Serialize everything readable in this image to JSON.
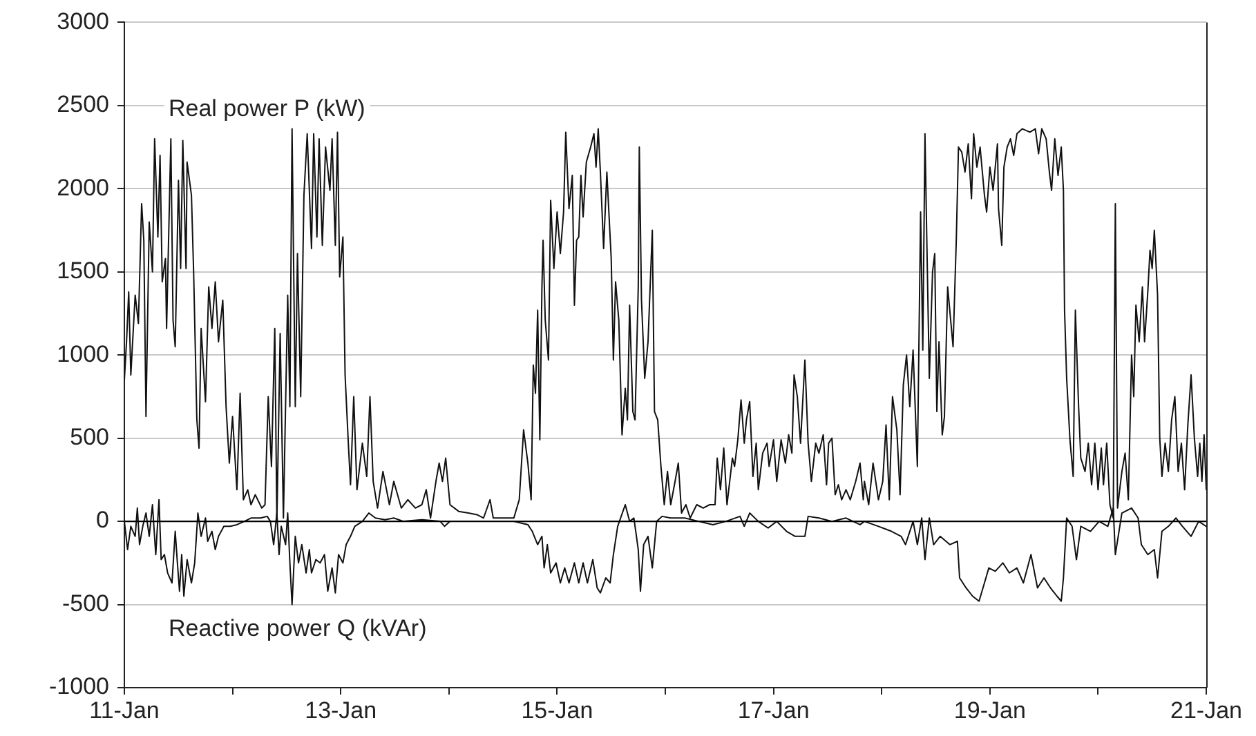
{
  "chart_data": {
    "type": "line",
    "xlim": [
      "--01-11",
      "--01-21"
    ],
    "xticks": [
      {
        "value": "--01-11",
        "label": "11-Jan"
      },
      {
        "value": "--01-12",
        "label": null
      },
      {
        "value": "--01-13",
        "label": "13-Jan"
      },
      {
        "value": "--01-14",
        "label": null
      },
      {
        "value": "--01-15",
        "label": "15-Jan"
      },
      {
        "value": "--01-16",
        "label": null
      },
      {
        "value": "--01-17",
        "label": "17-Jan"
      },
      {
        "value": "--01-18",
        "label": null
      },
      {
        "value": "--01-19",
        "label": "19-Jan"
      },
      {
        "value": "--01-20",
        "label": null
      },
      {
        "value": "--01-21",
        "label": "21-Jan"
      }
    ],
    "ylim": [
      -1000,
      3000
    ],
    "yticks": [
      -1000,
      -500,
      0,
      500,
      1000,
      1500,
      2000,
      2500,
      3000
    ],
    "grid": "y",
    "legend": false,
    "marker": "none",
    "line_style": "solid",
    "ref_lines": [
      {
        "axis": "y",
        "value": 0,
        "color": "#000000"
      }
    ],
    "series": [
      {
        "name": "Real power P (kW)",
        "color": "#111111",
        "x": [
          "--01-11T00:00",
          "--01-11T00:29",
          "--01-11T00:58",
          "--01-11T01:26",
          "--01-11T02:24",
          "--01-11T03:07",
          "--01-11T03:50",
          "--01-11T04:19",
          "--01-11T04:48",
          "--01-11T05:31",
          "--01-11T06:14",
          "--01-11T06:43",
          "--01-11T07:26",
          "--01-11T07:55",
          "--01-11T08:24",
          "--01-11T09:07",
          "--01-11T09:22",
          "--01-11T10:19",
          "--01-11T10:48",
          "--01-11T11:17",
          "--01-11T12:00",
          "--01-11T12:29",
          "--01-11T12:58",
          "--01-11T13:41",
          "--01-11T13:55",
          "--01-11T14:53",
          "--01-11T15:22",
          "--01-11T16:05",
          "--01-11T16:34",
          "--01-11T17:02",
          "--01-11T18:00",
          "--01-11T18:43",
          "--01-11T19:26",
          "--01-11T20:10",
          "--01-11T20:53",
          "--01-11T21:50",
          "--01-11T22:34",
          "--01-11T23:17",
          "--01-12T00:00",
          "--01-12T00:58",
          "--01-12T01:41",
          "--01-12T02:24",
          "--01-12T03:22",
          "--01-12T04:05",
          "--01-12T05:02",
          "--01-12T06:29",
          "--01-12T07:12",
          "--01-12T07:55",
          "--01-12T08:38",
          "--01-12T09:22",
          "--01-12T09:50",
          "--01-12T10:34",
          "--01-12T11:17",
          "--01-12T12:14",
          "--01-12T12:43",
          "--01-12T13:12",
          "--01-12T13:55",
          "--01-12T14:24",
          "--01-12T15:07",
          "--01-12T15:50",
          "--01-12T16:34",
          "--01-12T17:31",
          "--01-12T18:00",
          "--01-12T18:43",
          "--01-12T19:12",
          "--01-12T19:55",
          "--01-12T20:38",
          "--01-12T21:36",
          "--01-12T22:05",
          "--01-12T22:48",
          "--01-12T23:17",
          "--01-12T23:46",
          "--01-13T00:29",
          "--01-13T00:58",
          "--01-13T01:41",
          "--01-13T02:10",
          "--01-13T02:53",
          "--01-13T03:36",
          "--01-13T04:48",
          "--01-13T05:46",
          "--01-13T06:29",
          "--01-13T07:12",
          "--01-13T08:10",
          "--01-13T09:22",
          "--01-13T10:48",
          "--01-13T11:46",
          "--01-13T13:26",
          "--01-13T14:53",
          "--01-13T16:34",
          "--01-13T18:00",
          "--01-13T18:58",
          "--01-13T19:55",
          "--01-13T21:07",
          "--01-13T21:50",
          "--01-13T22:34",
          "--01-13T23:17",
          "--01-14T00:14",
          "--01-14T02:10",
          "--01-14T04:19",
          "--01-14T06:14",
          "--01-14T07:41",
          "--01-14T09:07",
          "--01-14T09:50",
          "--01-14T12:29",
          "--01-14T14:24",
          "--01-14T15:36",
          "--01-14T16:34",
          "--01-14T17:31",
          "--01-14T18:14",
          "--01-14T18:43",
          "--01-14T19:12",
          "--01-14T19:41",
          "--01-14T20:10",
          "--01-14T20:38",
          "--01-14T20:53",
          "--01-14T21:22",
          "--01-14T22:05",
          "--01-14T22:34",
          "--01-14T23:17",
          "--01-15T00:00",
          "--01-15T00:43",
          "--01-15T01:26",
          "--01-15T01:55",
          "--01-15T02:38",
          "--01-15T03:22",
          "--01-15T03:50",
          "--01-15T04:19",
          "--01-15T04:48",
          "--01-15T05:17",
          "--01-15T05:46",
          "--01-15T06:29",
          "--01-15T07:26",
          "--01-15T08:10",
          "--01-15T08:38",
          "--01-15T09:07",
          "--01-15T09:36",
          "--01-15T10:19",
          "--01-15T11:02",
          "--01-15T12:00",
          "--01-15T12:29",
          "--01-15T12:58",
          "--01-15T13:41",
          "--01-15T14:24",
          "--01-15T15:07",
          "--01-15T15:36",
          "--01-15T16:05",
          "--01-15T16:48",
          "--01-15T17:17",
          "--01-15T18:00",
          "--01-15T18:14",
          "--01-15T18:43",
          "--01-15T19:26",
          "--01-15T20:10",
          "--01-15T20:38",
          "--01-15T21:07",
          "--01-15T21:36",
          "--01-15T22:19",
          "--01-15T23:02",
          "--01-15T23:46",
          "--01-16T00:29",
          "--01-16T01:12",
          "--01-16T02:10",
          "--01-16T02:53",
          "--01-16T03:36",
          "--01-16T04:34",
          "--01-16T05:31",
          "--01-16T06:58",
          "--01-16T08:24",
          "--01-16T09:50",
          "--01-16T11:02",
          "--01-16T11:31",
          "--01-16T12:14",
          "--01-16T12:58",
          "--01-16T13:41",
          "--01-16T14:53",
          "--01-16T15:22",
          "--01-16T16:05",
          "--01-16T16:48",
          "--01-16T17:31",
          "--01-16T18:00",
          "--01-16T18:43",
          "--01-16T19:26",
          "--01-16T20:10",
          "--01-16T20:38",
          "--01-16T21:36",
          "--01-16T22:34",
          "--01-16T23:02",
          "--01-17T00:00",
          "--01-17T00:43",
          "--01-17T01:41",
          "--01-17T02:38",
          "--01-17T03:22",
          "--01-17T04:05",
          "--01-17T04:34",
          "--01-17T05:17",
          "--01-17T06:00",
          "--01-17T06:58",
          "--01-17T07:41",
          "--01-17T08:24",
          "--01-17T09:22",
          "--01-17T10:05",
          "--01-17T11:02",
          "--01-17T11:46",
          "--01-17T12:14",
          "--01-17T12:58",
          "--01-17T13:41",
          "--01-17T14:24",
          "--01-17T15:07",
          "--01-17T16:05",
          "--01-17T17:02",
          "--01-17T18:14",
          "--01-17T19:12",
          "--01-17T19:55",
          "--01-17T20:10",
          "--01-17T21:07",
          "--01-17T22:05",
          "--01-17T23:17",
          "--01-18T00:14",
          "--01-18T00:58",
          "--01-18T01:41",
          "--01-18T02:24",
          "--01-18T03:22",
          "--01-18T04:05",
          "--01-18T04:48",
          "--01-18T05:31",
          "--01-18T06:14",
          "--01-18T06:58",
          "--01-18T07:55",
          "--01-18T08:38",
          "--01-18T09:07",
          "--01-18T09:36",
          "--01-18T10:05",
          "--01-18T10:34",
          "--01-18T11:17",
          "--01-18T11:46",
          "--01-18T12:14",
          "--01-18T12:43",
          "--01-18T13:26",
          "--01-18T13:55",
          "--01-18T14:38",
          "--01-18T15:50",
          "--01-18T16:34",
          "--01-18T17:02",
          "--01-18T17:46",
          "--01-18T18:29",
          "--01-18T19:12",
          "--01-18T19:55",
          "--01-18T20:24",
          "--01-18T21:07",
          "--01-18T21:50",
          "--01-18T22:48",
          "--01-18T23:17",
          "--01-19T00:00",
          "--01-19T00:43",
          "--01-19T01:41",
          "--01-19T01:55",
          "--01-19T02:38",
          "--01-19T03:07",
          "--01-19T03:50",
          "--01-19T04:34",
          "--01-19T05:17",
          "--01-19T06:00",
          "--01-19T07:12",
          "--01-19T08:53",
          "--01-19T10:05",
          "--01-19T10:48",
          "--01-19T11:31",
          "--01-19T12:29",
          "--01-19T13:12",
          "--01-19T13:41",
          "--01-19T14:24",
          "--01-19T15:07",
          "--01-19T15:50",
          "--01-19T16:19",
          "--01-19T16:34",
          "--01-19T17:02",
          "--01-19T17:46",
          "--01-19T18:29",
          "--01-19T18:58",
          "--01-19T19:41",
          "--01-19T20:10",
          "--01-19T21:07",
          "--01-19T21:50",
          "--01-19T22:34",
          "--01-19T23:17",
          "--01-20T00:00",
          "--01-20T00:43",
          "--01-20T01:12",
          "--01-20T01:55",
          "--01-20T02:38",
          "--01-20T03:22",
          "--01-20T03:50",
          "--01-20T04:19",
          "--01-20T05:17",
          "--01-20T06:00",
          "--01-20T06:43",
          "--01-20T07:26",
          "--01-20T07:55",
          "--01-20T08:24",
          "--01-20T09:07",
          "--01-20T09:50",
          "--01-20T10:19",
          "--01-20T11:02",
          "--01-20T11:31",
          "--01-20T12:00",
          "--01-20T12:29",
          "--01-20T13:12",
          "--01-20T13:41",
          "--01-20T14:10",
          "--01-20T14:53",
          "--01-20T15:36",
          "--01-20T16:19",
          "--01-20T17:02",
          "--01-20T17:46",
          "--01-20T18:29",
          "--01-20T19:12",
          "--01-20T19:55",
          "--01-20T20:38",
          "--01-20T21:22",
          "--01-20T22:05",
          "--01-20T22:34",
          "--01-20T23:02",
          "--01-20T23:31",
          "--01-21T00:00"
        ],
        "values": [
          850,
          1080,
          1380,
          880,
          1360,
          1190,
          1910,
          1690,
          630,
          1800,
          1500,
          2300,
          1710,
          2200,
          1440,
          1580,
          1160,
          2300,
          1210,
          1050,
          2050,
          1520,
          2290,
          1520,
          2160,
          1960,
          1500,
          610,
          440,
          1160,
          720,
          1410,
          1160,
          1440,
          1080,
          1330,
          690,
          350,
          630,
          190,
          770,
          130,
          190,
          100,
          160,
          80,
          100,
          750,
          330,
          1160,
          0,
          1130,
          20,
          1360,
          690,
          2360,
          690,
          1610,
          750,
          1960,
          2330,
          1640,
          2330,
          1710,
          2300,
          1660,
          2250,
          1990,
          2300,
          1660,
          2340,
          1470,
          1710,
          880,
          470,
          220,
          750,
          190,
          470,
          270,
          750,
          240,
          80,
          300,
          100,
          240,
          80,
          130,
          80,
          100,
          190,
          20,
          240,
          350,
          240,
          380,
          100,
          60,
          50,
          40,
          20,
          130,
          20,
          20,
          20,
          130,
          550,
          350,
          130,
          940,
          770,
          1270,
          490,
          1410,
          1690,
          1210,
          970,
          1930,
          1520,
          1860,
          1610,
          1860,
          2340,
          1880,
          2080,
          1300,
          1690,
          1710,
          2080,
          1830,
          2160,
          2250,
          2330,
          2130,
          2360,
          2100,
          1640,
          2100,
          1580,
          970,
          1440,
          1210,
          520,
          800,
          610,
          1300,
          660,
          610,
          1410,
          2250,
          1330,
          860,
          1080,
          1410,
          1750,
          660,
          610,
          330,
          100,
          300,
          100,
          240,
          350,
          50,
          100,
          20,
          100,
          80,
          100,
          100,
          380,
          190,
          440,
          100,
          380,
          330,
          490,
          730,
          470,
          610,
          720,
          270,
          470,
          190,
          410,
          470,
          330,
          490,
          240,
          490,
          350,
          520,
          410,
          880,
          750,
          470,
          970,
          470,
          240,
          470,
          410,
          520,
          220,
          470,
          500,
          160,
          220,
          130,
          190,
          130,
          240,
          350,
          130,
          240,
          100,
          350,
          130,
          240,
          580,
          130,
          750,
          550,
          160,
          820,
          1000,
          690,
          1030,
          330,
          1860,
          1030,
          2330,
          1580,
          860,
          1500,
          1610,
          660,
          1080,
          520,
          630,
          1410,
          1050,
          1710,
          2250,
          2220,
          2100,
          2270,
          1940,
          2330,
          2130,
          2250,
          1960,
          1860,
          2130,
          1990,
          2270,
          1880,
          1660,
          2130,
          2250,
          2300,
          2200,
          2330,
          2360,
          2340,
          2360,
          2210,
          2360,
          2300,
          2100,
          1990,
          2300,
          2080,
          2250,
          1990,
          1270,
          860,
          490,
          270,
          1270,
          690,
          380,
          300,
          470,
          220,
          470,
          190,
          440,
          220,
          470,
          100,
          20,
          1910,
          80,
          300,
          410,
          130,
          1000,
          750,
          1300,
          1080,
          1410,
          1080,
          1380,
          1630,
          1520,
          1750,
          1360,
          500,
          270,
          470,
          300,
          610,
          750,
          300,
          470,
          190,
          580,
          880,
          500,
          270,
          470,
          240,
          520,
          190
        ]
      },
      {
        "name": "Reactive power Q (kVAr)",
        "color": "#111111",
        "x": [
          "--01-11T00:00",
          "--01-11T00:43",
          "--01-11T01:26",
          "--01-11T02:24",
          "--01-11T02:53",
          "--01-11T03:22",
          "--01-11T04:05",
          "--01-11T04:48",
          "--01-11T05:31",
          "--01-11T06:14",
          "--01-11T06:58",
          "--01-11T07:41",
          "--01-11T08:10",
          "--01-11T08:53",
          "--01-11T09:36",
          "--01-11T10:34",
          "--01-11T11:17",
          "--01-11T11:46",
          "--01-11T12:14",
          "--01-11T12:43",
          "--01-11T13:12",
          "--01-11T13:55",
          "--01-11T14:53",
          "--01-11T15:36",
          "--01-11T16:19",
          "--01-11T17:02",
          "--01-11T18:00",
          "--01-11T18:29",
          "--01-11T19:26",
          "--01-11T20:10",
          "--01-11T20:53",
          "--01-11T22:05",
          "--01-11T23:31",
          "--01-12T00:58",
          "--01-12T02:38",
          "--01-12T04:05",
          "--01-12T06:14",
          "--01-12T07:41",
          "--01-12T08:24",
          "--01-12T09:07",
          "--01-12T09:50",
          "--01-12T10:19",
          "--01-12T10:48",
          "--01-12T11:46",
          "--01-12T12:14",
          "--01-12T12:43",
          "--01-12T13:12",
          "--01-12T13:55",
          "--01-12T14:38",
          "--01-12T15:22",
          "--01-12T16:19",
          "--01-12T17:02",
          "--01-12T17:31",
          "--01-12T18:29",
          "--01-12T19:26",
          "--01-12T20:24",
          "--01-12T21:07",
          "--01-12T22:05",
          "--01-12T22:48",
          "--01-12T23:31",
          "--01-13T00:29",
          "--01-13T01:12",
          "--01-13T02:10",
          "--01-13T03:07",
          "--01-13T04:48",
          "--01-13T06:14",
          "--01-13T07:41",
          "--01-13T09:50",
          "--01-13T11:46",
          "--01-13T13:55",
          "--01-13T18:00",
          "--01-13T22:05",
          "--01-13T23:02",
          "--01-14T00:14",
          "--01-14T06:14",
          "--01-14T12:29",
          "--01-14T14:24",
          "--01-14T17:31",
          "--01-14T18:29",
          "--01-14T19:41",
          "--01-14T20:38",
          "--01-14T21:07",
          "--01-14T21:50",
          "--01-14T22:34",
          "--01-14T23:46",
          "--01-15T00:43",
          "--01-15T01:41",
          "--01-15T02:38",
          "--01-15T03:50",
          "--01-15T04:48",
          "--01-15T05:46",
          "--01-15T06:43",
          "--01-15T07:55",
          "--01-15T08:53",
          "--01-15T09:36",
          "--01-15T10:48",
          "--01-15T11:46",
          "--01-15T12:29",
          "--01-15T13:26",
          "--01-15T15:07",
          "--01-15T16:05",
          "--01-15T17:02",
          "--01-15T18:00",
          "--01-15T18:29",
          "--01-15T19:12",
          "--01-15T20:10",
          "--01-15T21:07",
          "--01-15T22:05",
          "--01-15T23:17",
          "--01-16T01:12",
          "--01-16T04:19",
          "--01-16T07:26",
          "--01-16T10:34",
          "--01-16T13:26",
          "--01-16T16:34",
          "--01-16T17:31",
          "--01-16T18:43",
          "--01-16T20:38",
          "--01-16T22:48",
          "--01-17T00:43",
          "--01-17T02:53",
          "--01-17T04:48",
          "--01-17T06:58",
          "--01-17T07:41",
          "--01-17T10:05",
          "--01-17T12:58",
          "--01-17T16:05",
          "--01-17T19:12",
          "--01-17T20:10",
          "--01-17T23:17",
          "--01-18T02:10",
          "--01-18T04:19",
          "--01-18T05:17",
          "--01-18T06:58",
          "--01-18T07:55",
          "--01-18T08:53",
          "--01-18T09:36",
          "--01-18T10:34",
          "--01-18T11:31",
          "--01-18T12:58",
          "--01-18T15:07",
          "--01-18T16:48",
          "--01-18T17:17",
          "--01-18T18:43",
          "--01-18T20:10",
          "--01-18T21:36",
          "--01-18T22:48",
          "--01-18T23:46",
          "--01-19T01:12",
          "--01-19T02:53",
          "--01-19T04:19",
          "--01-19T06:00",
          "--01-19T07:26",
          "--01-19T09:07",
          "--01-19T10:34",
          "--01-19T12:00",
          "--01-19T13:26",
          "--01-19T14:53",
          "--01-19T15:50",
          "--01-19T16:19",
          "--01-19T17:02",
          "--01-19T18:14",
          "--01-19T19:12",
          "--01-19T20:10",
          "--01-19T22:19",
          "--01-20T00:14",
          "--01-20T02:10",
          "--01-20T03:22",
          "--01-20T03:50",
          "--01-20T05:17",
          "--01-20T07:26",
          "--01-20T08:53",
          "--01-20T09:36",
          "--01-20T11:02",
          "--01-20T12:29",
          "--01-20T13:12",
          "--01-20T14:10",
          "--01-20T15:36",
          "--01-20T17:17",
          "--01-20T18:43",
          "--01-20T20:38",
          "--01-20T22:19",
          "--01-21T00:00"
        ],
        "values": [
          0,
          -170,
          -30,
          -90,
          80,
          -140,
          -30,
          50,
          -90,
          100,
          -200,
          130,
          -230,
          -200,
          -310,
          -370,
          -60,
          -250,
          -420,
          -200,
          -450,
          -230,
          -370,
          -250,
          50,
          -90,
          20,
          -120,
          -60,
          -170,
          -90,
          -30,
          -30,
          -20,
          0,
          20,
          20,
          30,
          0,
          -140,
          50,
          -200,
          -30,
          -140,
          50,
          -250,
          -500,
          -90,
          -250,
          -140,
          -310,
          -170,
          -310,
          -230,
          -250,
          -200,
          -420,
          -280,
          -430,
          -200,
          -250,
          -140,
          -90,
          -30,
          0,
          50,
          20,
          10,
          20,
          0,
          10,
          0,
          -30,
          0,
          0,
          0,
          0,
          -20,
          -60,
          -140,
          -90,
          -280,
          -140,
          -310,
          -250,
          -370,
          -280,
          -370,
          -250,
          -370,
          -250,
          -370,
          -230,
          -400,
          -430,
          -340,
          -370,
          -200,
          -30,
          100,
          0,
          20,
          -170,
          -420,
          -140,
          -90,
          -280,
          0,
          30,
          20,
          20,
          0,
          -20,
          0,
          30,
          -30,
          50,
          0,
          -40,
          0,
          -60,
          -90,
          -90,
          30,
          20,
          0,
          20,
          -20,
          0,
          -30,
          -60,
          -90,
          -140,
          0,
          -140,
          20,
          -230,
          20,
          -140,
          -90,
          -140,
          -120,
          -340,
          -400,
          -450,
          -480,
          -370,
          -280,
          -300,
          -250,
          -310,
          -280,
          -370,
          -200,
          -400,
          -340,
          -400,
          -450,
          -480,
          -340,
          20,
          -30,
          -230,
          -30,
          -60,
          0,
          -30,
          80,
          -200,
          50,
          80,
          20,
          -140,
          -200,
          -170,
          -340,
          -60,
          -30,
          20,
          -30,
          -90,
          0,
          -30
        ]
      }
    ]
  }
}
